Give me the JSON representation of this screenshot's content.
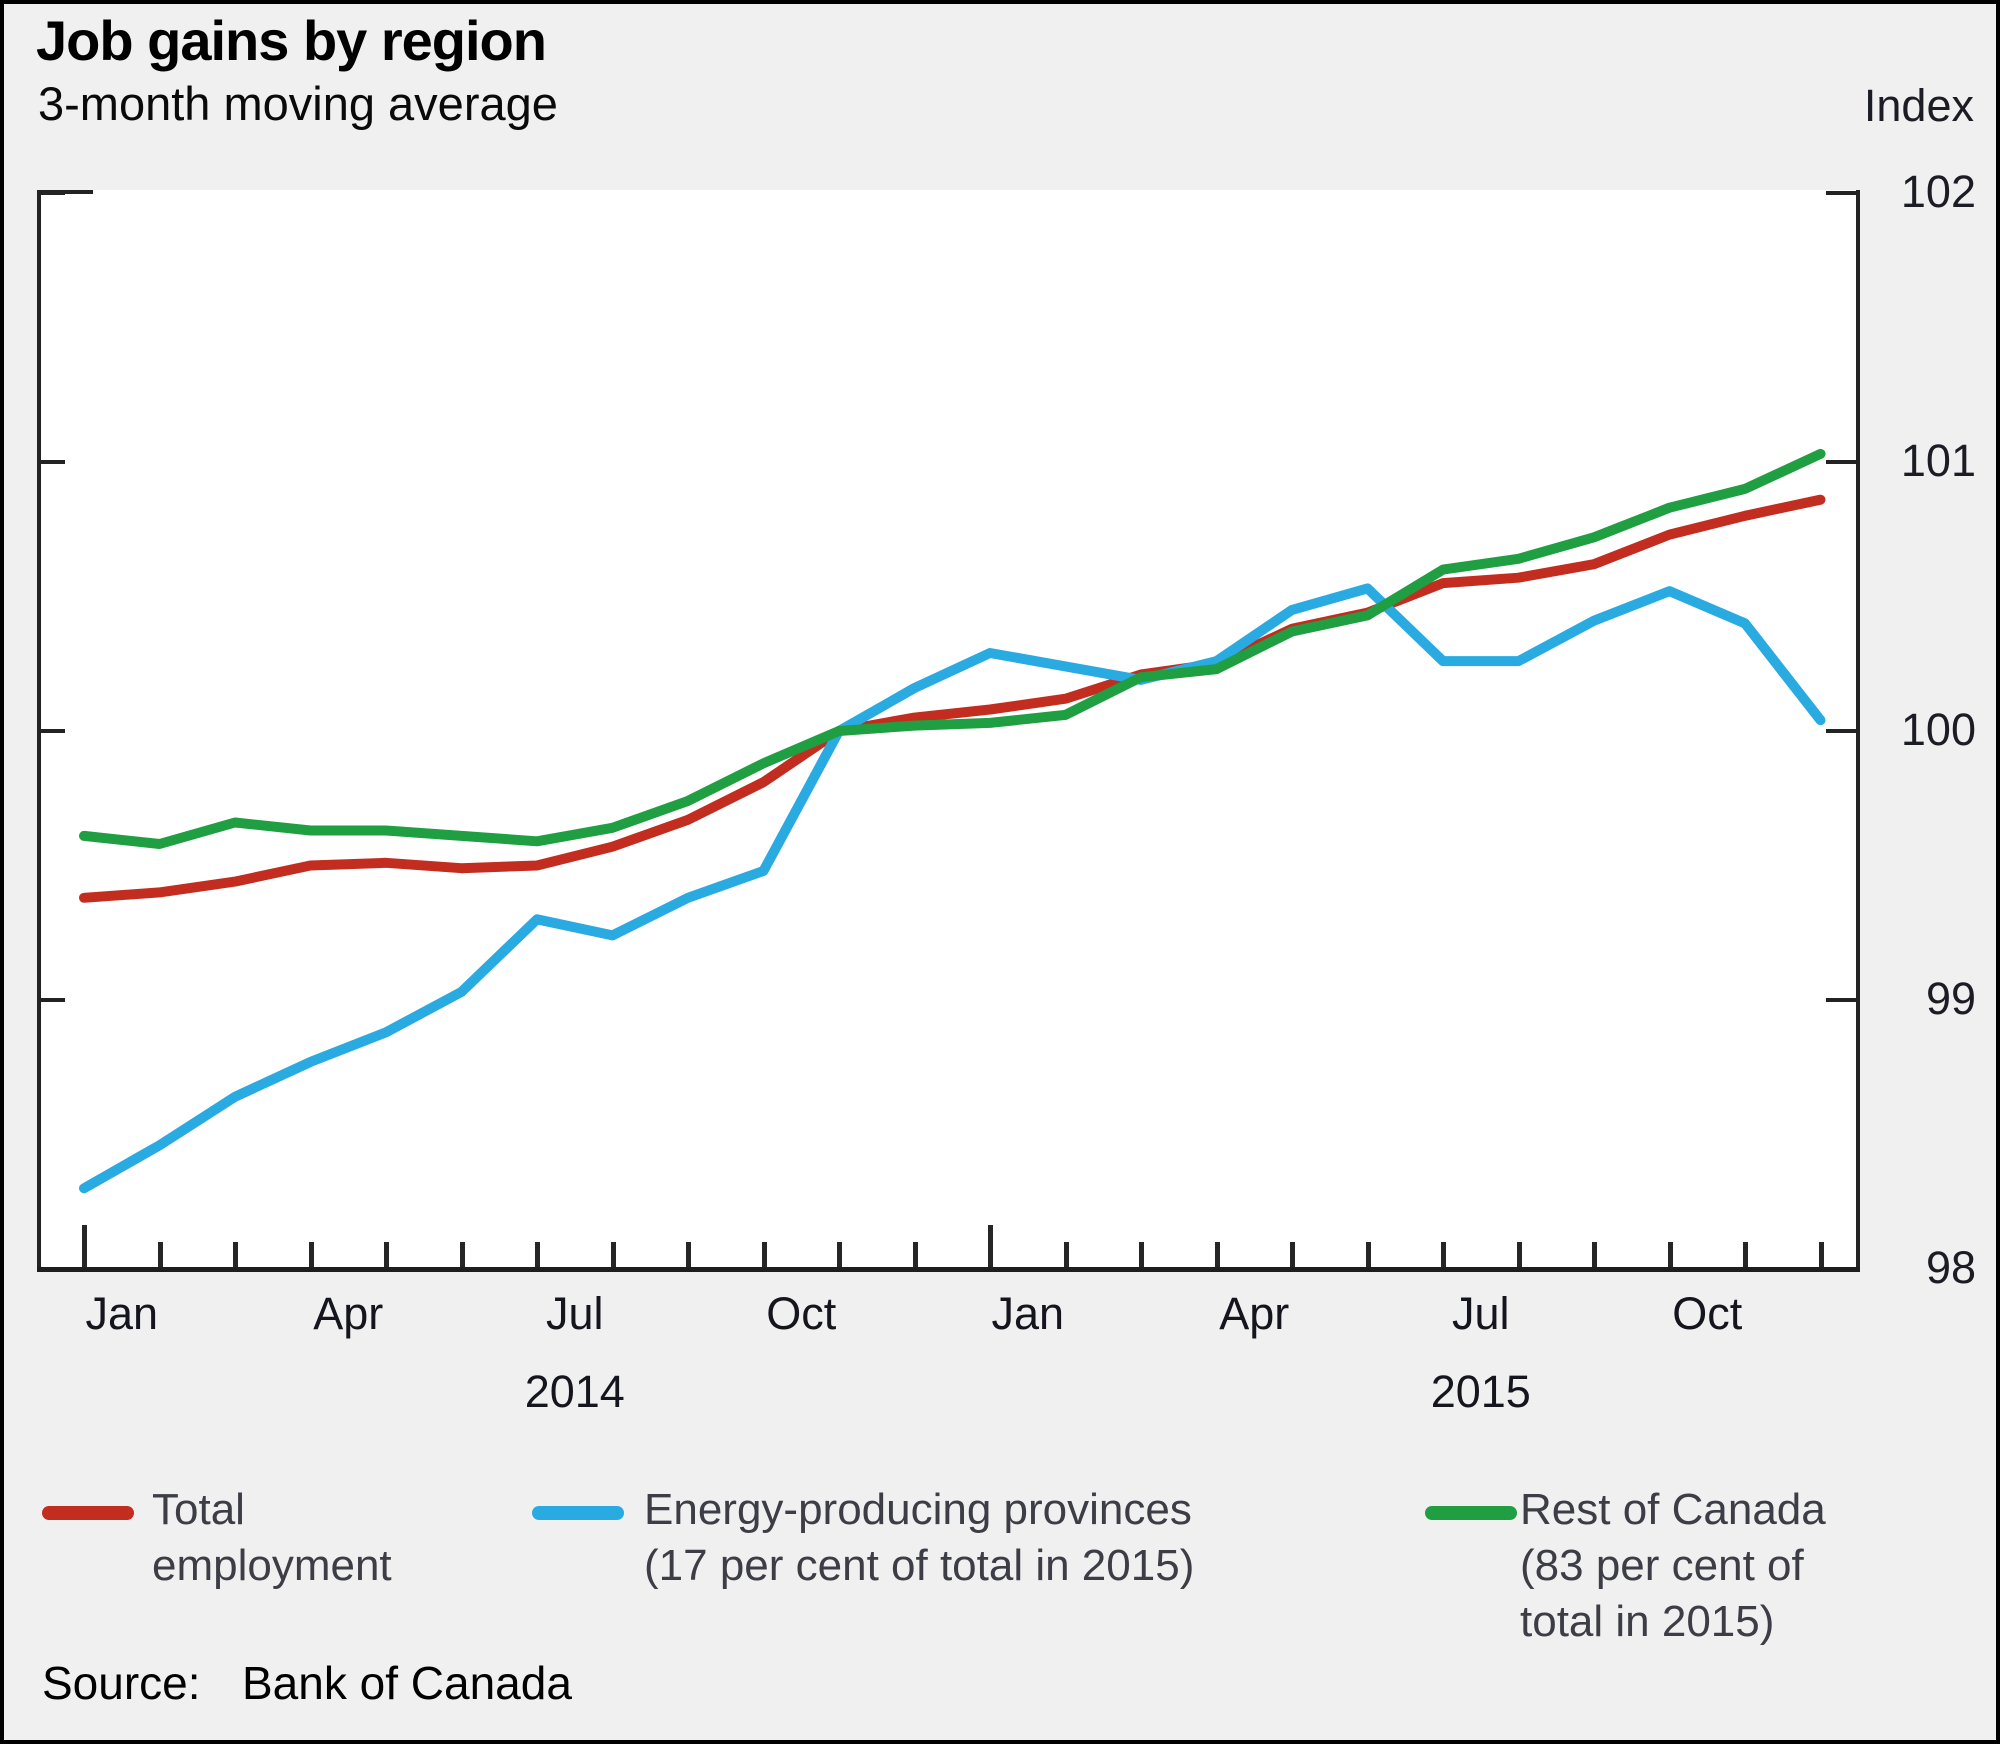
{
  "header": {
    "title": "Job gains by region",
    "subtitle": "3-month moving average",
    "axis_unit_label": "Index"
  },
  "chart_data": {
    "type": "line",
    "x": [
      "Jan 2014",
      "Feb 2014",
      "Mar 2014",
      "Apr 2014",
      "May 2014",
      "Jun 2014",
      "Jul 2014",
      "Aug 2014",
      "Sep 2014",
      "Oct 2014",
      "Nov 2014",
      "Dec 2014",
      "Jan 2015",
      "Feb 2015",
      "Mar 2015",
      "Apr 2015",
      "May 2015",
      "Jun 2015",
      "Jul 2015",
      "Aug 2015",
      "Sep 2015",
      "Oct 2015",
      "Nov 2015",
      "Dec 2015"
    ],
    "series": [
      {
        "name": "Total employment",
        "color": "#c22d20",
        "values": [
          99.38,
          99.4,
          99.44,
          99.5,
          99.51,
          99.49,
          99.5,
          99.57,
          99.67,
          99.81,
          100.0,
          100.05,
          100.08,
          100.12,
          100.21,
          100.25,
          100.38,
          100.44,
          100.55,
          100.57,
          100.62,
          100.73,
          100.8,
          100.86
        ]
      },
      {
        "name": "Energy-producing provinces (17 per cent of total in 2015)",
        "color": "#29abe2",
        "values": [
          98.3,
          98.46,
          98.64,
          98.77,
          98.88,
          99.03,
          99.3,
          99.24,
          99.38,
          99.48,
          100.0,
          100.16,
          100.29,
          100.24,
          100.19,
          100.26,
          100.45,
          100.53,
          100.26,
          100.26,
          100.41,
          100.52,
          100.4,
          100.04
        ]
      },
      {
        "name": "Rest of Canada (83 per cent of total in 2015)",
        "color": "#209e42",
        "values": [
          99.61,
          99.58,
          99.66,
          99.63,
          99.63,
          99.61,
          99.59,
          99.64,
          99.74,
          99.88,
          100.0,
          100.02,
          100.03,
          100.06,
          100.2,
          100.23,
          100.37,
          100.43,
          100.6,
          100.64,
          100.72,
          100.83,
          100.9,
          101.03
        ]
      }
    ],
    "ylim": [
      98,
      102
    ],
    "yticks": [
      102,
      101,
      100,
      99,
      98
    ],
    "grid": false,
    "legend_position": "bottom",
    "month_tick_count": 24,
    "year_start_tick_indexes": [
      0,
      12
    ],
    "month_labels": [
      {
        "label": "Jan",
        "month_index": 0
      },
      {
        "label": "Apr",
        "month_index": 3
      },
      {
        "label": "Jul",
        "month_index": 6
      },
      {
        "label": "Oct",
        "month_index": 9
      },
      {
        "label": "Jan",
        "month_index": 12
      },
      {
        "label": "Apr",
        "month_index": 15
      },
      {
        "label": "Jul",
        "month_index": 18
      },
      {
        "label": "Oct",
        "month_index": 21
      }
    ],
    "year_labels": [
      {
        "label": "2014",
        "center_month": 6.5
      },
      {
        "label": "2015",
        "center_month": 18.5
      }
    ]
  },
  "legend": {
    "entries": [
      {
        "lines": [
          "Total",
          "employment"
        ],
        "color": "#c22d20"
      },
      {
        "lines": [
          "Energy-producing provinces",
          "(17 per cent of total in 2015)"
        ],
        "color": "#29abe2"
      },
      {
        "lines": [
          "Rest of Canada",
          "(83 per cent of",
          "total in 2015)"
        ],
        "color": "#209e42"
      }
    ]
  },
  "footer": {
    "source_label": "Source:",
    "source_value": "Bank of Canada"
  }
}
